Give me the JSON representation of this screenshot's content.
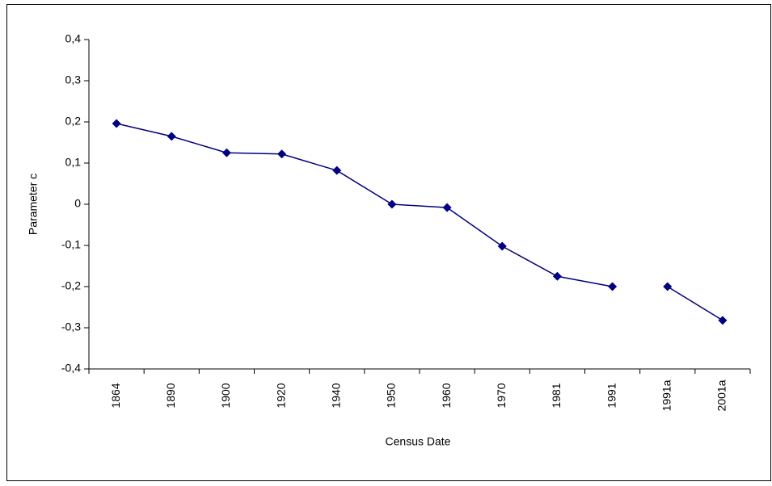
{
  "chart_data": {
    "type": "line",
    "x_label": "Census Date",
    "y_label": "Parameter c",
    "categories": [
      "1864",
      "1890",
      "1900",
      "1920",
      "1940",
      "1950",
      "1960",
      "1970",
      "1981",
      "1991",
      "1991a",
      "2001a"
    ],
    "series": [
      {
        "color": "#000080",
        "values": [
          0.196,
          0.165,
          0.125,
          0.122,
          0.082,
          0,
          -0.008,
          -0.102,
          -0.175,
          -0.2,
          null,
          null
        ]
      },
      {
        "color": "#000080",
        "values": [
          null,
          null,
          null,
          null,
          null,
          null,
          null,
          null,
          null,
          null,
          -0.2,
          -0.282
        ]
      }
    ],
    "ylim": [
      -0.4,
      0.4
    ],
    "yticks": [
      {
        "value": -0.4,
        "label": "-0,4"
      },
      {
        "value": -0.3,
        "label": "-0,3"
      },
      {
        "value": -0.2,
        "label": "-0,2"
      },
      {
        "value": -0.1,
        "label": "-0,1"
      },
      0,
      {
        "value": 0.1,
        "label": "0,1"
      },
      {
        "value": 0.2,
        "label": "0,2"
      },
      {
        "value": 0.3,
        "label": "0,3"
      },
      {
        "value": 0.4,
        "label": "0,4"
      }
    ],
    "grid": false
  }
}
